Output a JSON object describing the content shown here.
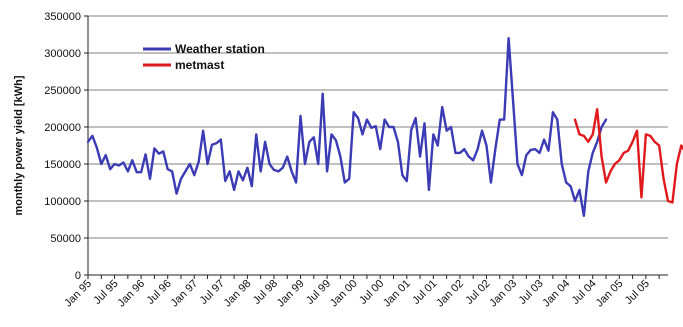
{
  "chart_data": {
    "type": "line",
    "title": "",
    "ylabel": "monthly power yield [kWh]",
    "xlabel": "",
    "ylim": [
      0,
      350000
    ],
    "yticks": [
      0,
      50000,
      100000,
      150000,
      200000,
      250000,
      300000,
      350000
    ],
    "ytick_labels": [
      "0",
      "50000",
      "100000",
      "150000",
      "200000",
      "250000",
      "300000",
      "350000"
    ],
    "x_range": [
      "1995-01",
      "2005-12"
    ],
    "xtick_labels": [
      "Jan 95",
      "Jul 95",
      "Jan 96",
      "Jul 96",
      "Jan 97",
      "Jul 97",
      "Jan 98",
      "Jul 98",
      "Jan 99",
      "Jul 99",
      "Jan 00",
      "Jul 00",
      "Jan 01",
      "Jul 01",
      "Jan 02",
      "Jul 02",
      "Jan 03",
      "Jul 03",
      "Jan 04",
      "Jul 04",
      "Jan 05",
      "Jul 05"
    ],
    "xtick_dates": [
      "1995-01",
      "1995-07",
      "1996-01",
      "1996-07",
      "1997-01",
      "1997-07",
      "1998-01",
      "1998-07",
      "1999-01",
      "1999-07",
      "2000-01",
      "2000-07",
      "2001-01",
      "2001-07",
      "2002-01",
      "2002-07",
      "2003-01",
      "2003-07",
      "2004-01",
      "2004-07",
      "2005-01",
      "2005-07"
    ],
    "grid": true,
    "grid_lines": "horizontal",
    "legend_position": "top-left",
    "series": [
      {
        "name": "Weather station",
        "color": "#3b3bb5",
        "start": "1995-01",
        "values": [
          180000,
          188000,
          172000,
          150000,
          162000,
          143000,
          150000,
          148000,
          152000,
          140000,
          155000,
          139000,
          139000,
          163000,
          130000,
          171000,
          164000,
          167000,
          143000,
          140000,
          110000,
          130000,
          140000,
          150000,
          135000,
          153000,
          195000,
          150000,
          176000,
          178000,
          183000,
          127000,
          140000,
          115000,
          140000,
          128000,
          145000,
          120000,
          190000,
          140000,
          180000,
          150000,
          142000,
          140000,
          145000,
          160000,
          140000,
          125000,
          215000,
          150000,
          180000,
          186000,
          150000,
          245000,
          140000,
          190000,
          182000,
          160000,
          125000,
          130000,
          220000,
          212000,
          190000,
          210000,
          199000,
          201000,
          170000,
          210000,
          200000,
          200000,
          180000,
          135000,
          127000,
          196000,
          212000,
          160000,
          205000,
          115000,
          190000,
          175000,
          227000,
          195000,
          200000,
          165000,
          165000,
          170000,
          160000,
          155000,
          170000,
          195000,
          175000,
          125000,
          170000,
          210000,
          210000,
          320000,
          236000,
          150000,
          135000,
          162000,
          169000,
          170000,
          165000,
          183000,
          168000,
          220000,
          210000,
          150000,
          125000,
          120000,
          100000,
          115000,
          80000,
          140000,
          165000,
          180000,
          200000,
          210000
        ]
      },
      {
        "name": "metmast",
        "color": "#e0191d",
        "start": "2004-03",
        "values": [
          210000,
          190000,
          188000,
          180000,
          190000,
          224000,
          160000,
          125000,
          140000,
          150000,
          155000,
          165000,
          168000,
          180000,
          195000,
          105000,
          190000,
          188000,
          180000,
          175000,
          130000,
          100000,
          98000,
          150000,
          175000,
          165000,
          195000
        ]
      }
    ]
  }
}
